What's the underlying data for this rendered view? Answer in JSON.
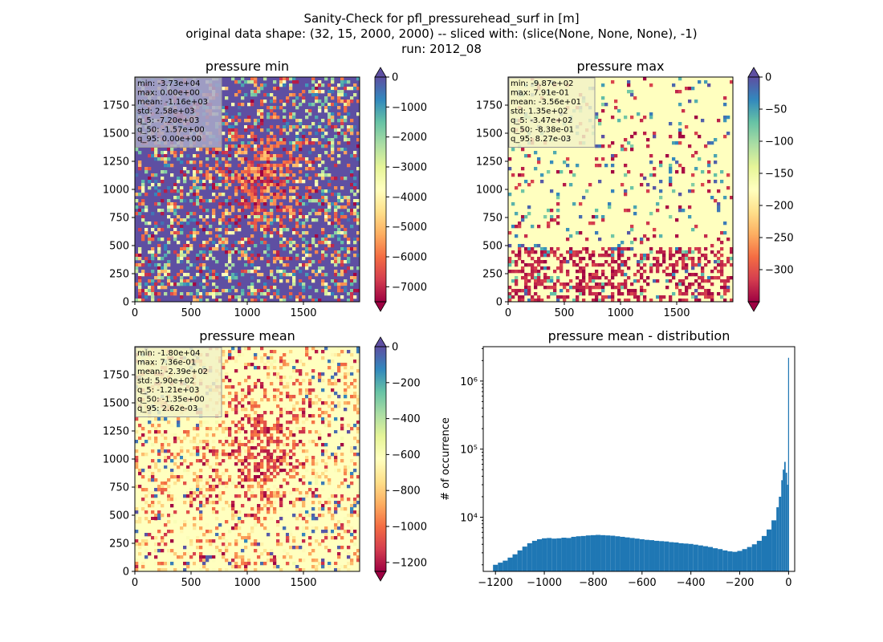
{
  "figure": {
    "title_lines": [
      "Sanity-Check for pfl_pressurehead_surf in [m]",
      "original data shape: (32, 15, 2000, 2000) -- sliced with: (slice(None, None, None), -1)",
      "run: 2012_08"
    ]
  },
  "chart_data": [
    {
      "type": "heatmap",
      "title": "pressure min",
      "colormap": "Spectral",
      "xlim": [
        0,
        2000
      ],
      "ylim": [
        0,
        2000
      ],
      "xticks": [
        0,
        500,
        1000,
        1500
      ],
      "yticks": [
        0,
        250,
        500,
        750,
        1000,
        1250,
        1500,
        1750
      ],
      "colorbar": {
        "range": [
          -7500,
          0
        ],
        "ticks": [
          0,
          -1000,
          -2000,
          -3000,
          -4000,
          -5000,
          -6000,
          -7000
        ],
        "extend": "both"
      },
      "stats": [
        "min: -3.73e+04",
        "max: 0.00e+00",
        "mean: -1.16e+03",
        "std: 2.58e+03",
        "q_5: -7.20e+03",
        "q_50: -1.57e+00",
        "q_95: 0.00e+00"
      ],
      "stats_box_color": "#a9a9c9",
      "background_value_fraction": 1.0
    },
    {
      "type": "heatmap",
      "title": "pressure max",
      "colormap": "Spectral",
      "xlim": [
        0,
        2000
      ],
      "ylim": [
        0,
        2000
      ],
      "xticks": [
        0,
        500,
        1000,
        1500
      ],
      "yticks": [
        0,
        250,
        500,
        750,
        1000,
        1250,
        1500,
        1750
      ],
      "colorbar": {
        "range": [
          -350,
          0
        ],
        "ticks": [
          0,
          -50,
          -100,
          -150,
          -200,
          -250,
          -300
        ],
        "extend": "both"
      },
      "stats": [
        "min: -9.87e+02",
        "max: 7.91e-01",
        "mean: -3.56e+01",
        "std: 1.35e+02",
        "q_5: -3.47e+02",
        "q_50: -8.38e-01",
        "q_95: 8.27e-03"
      ],
      "stats_box_color": "#f2f2c6",
      "background_value_fraction": 0.5
    },
    {
      "type": "heatmap",
      "title": "pressure mean",
      "colormap": "Spectral",
      "xlim": [
        0,
        2000
      ],
      "ylim": [
        0,
        2000
      ],
      "xticks": [
        0,
        500,
        1000,
        1500
      ],
      "yticks": [
        0,
        250,
        500,
        750,
        1000,
        1250,
        1500,
        1750
      ],
      "colorbar": {
        "range": [
          -1250,
          0
        ],
        "ticks": [
          0,
          -200,
          -400,
          -600,
          -800,
          -1000,
          -1200
        ],
        "extend": "both"
      },
      "stats": [
        "min: -1.80e+04",
        "max: 7.36e-01",
        "mean: -2.39e+02",
        "std: 5.90e+02",
        "q_5: -1.21e+03",
        "q_50: -1.35e+00",
        "q_95: 2.62e-03"
      ],
      "stats_box_color": "#f2f2c6",
      "background_value_fraction": 0.5
    },
    {
      "type": "bar",
      "title": "pressure mean - distribution",
      "ylabel": "# of occurrence",
      "xlabel": "",
      "xlim": [
        -1250,
        25
      ],
      "ylim": [
        1600,
        3200000
      ],
      "yscale": "log",
      "xticks": [
        -1200,
        -1000,
        -800,
        -600,
        -400,
        -200,
        0
      ],
      "yticks": [
        {
          "value": 10000,
          "label": "10⁴"
        },
        {
          "value": 100000,
          "label": "10⁵"
        },
        {
          "value": 1000000,
          "label": "10⁶"
        }
      ],
      "color": "#1f77b4",
      "bin_width": 6.1,
      "bins": [
        [
          -1210,
          2000
        ],
        [
          -1190,
          2150
        ],
        [
          -1170,
          2300
        ],
        [
          -1150,
          2550
        ],
        [
          -1130,
          2850
        ],
        [
          -1110,
          3250
        ],
        [
          -1090,
          3700
        ],
        [
          -1070,
          4150
        ],
        [
          -1050,
          4500
        ],
        [
          -1030,
          4750
        ],
        [
          -1010,
          4900
        ],
        [
          -990,
          4950
        ],
        [
          -970,
          4850
        ],
        [
          -950,
          4900
        ],
        [
          -930,
          5000
        ],
        [
          -910,
          4950
        ],
        [
          -890,
          5150
        ],
        [
          -870,
          5250
        ],
        [
          -850,
          5300
        ],
        [
          -830,
          5400
        ],
        [
          -810,
          5450
        ],
        [
          -790,
          5500
        ],
        [
          -770,
          5450
        ],
        [
          -750,
          5400
        ],
        [
          -730,
          5350
        ],
        [
          -710,
          5250
        ],
        [
          -690,
          5150
        ],
        [
          -670,
          5050
        ],
        [
          -650,
          4950
        ],
        [
          -630,
          4850
        ],
        [
          -610,
          4750
        ],
        [
          -590,
          4650
        ],
        [
          -570,
          4600
        ],
        [
          -550,
          4500
        ],
        [
          -530,
          4450
        ],
        [
          -510,
          4400
        ],
        [
          -490,
          4300
        ],
        [
          -470,
          4250
        ],
        [
          -450,
          4150
        ],
        [
          -430,
          4100
        ],
        [
          -410,
          4050
        ],
        [
          -390,
          3950
        ],
        [
          -370,
          3850
        ],
        [
          -350,
          3750
        ],
        [
          -330,
          3650
        ],
        [
          -310,
          3500
        ],
        [
          -290,
          3400
        ],
        [
          -270,
          3250
        ],
        [
          -250,
          3150
        ],
        [
          -230,
          3100
        ],
        [
          -210,
          3200
        ],
        [
          -190,
          3400
        ],
        [
          -170,
          3650
        ],
        [
          -150,
          4000
        ],
        [
          -130,
          4500
        ],
        [
          -110,
          5300
        ],
        [
          -90,
          6600
        ],
        [
          -70,
          9000
        ],
        [
          -50,
          14000
        ],
        [
          -40,
          20000
        ],
        [
          -30,
          35000
        ],
        [
          -24,
          50000
        ],
        [
          -18,
          65000
        ],
        [
          -12,
          45000
        ],
        [
          -6,
          30000
        ],
        [
          -2,
          2200000
        ]
      ]
    }
  ]
}
